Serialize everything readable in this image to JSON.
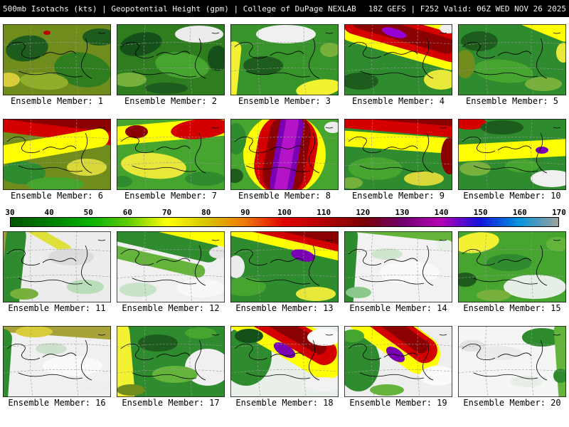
{
  "header": {
    "left": "500mb Isotachs (kts) | Geopotential Height (gpm) | College of DuPage NEXLAB",
    "right": "18Z GEFS | F252 Valid: 06Z WED NOV 26 2025"
  },
  "colorbar": {
    "unit": "kts",
    "ticks": [
      "30",
      "40",
      "50",
      "60",
      "70",
      "80",
      "90",
      "100",
      "110",
      "120",
      "130",
      "140",
      "150",
      "160",
      "170"
    ],
    "colors": [
      "#005500",
      "#007e00",
      "#00b000",
      "#5ecb00",
      "#ffff00",
      "#d8c400",
      "#f07800",
      "#e00000",
      "#b40000",
      "#7c0000",
      "#70006e",
      "#b400b4",
      "#1414dc",
      "#0096dc",
      "#a0a0a0"
    ]
  },
  "map_overlay": {
    "graticule": [
      "M0,30 Q76,22 152,28",
      "M0,66 Q76,58 152,64",
      "M40,0 Q36,50 42,100",
      "M104,0 Q101,50 106,100"
    ],
    "coast": [
      "M6,32 q10,-9 20,-6 q9,3 3,10 q-7,8 5,11 q10,2 18,-2",
      "M56,44 q9,-7 18,-3 q8,3 15,-1 q9,-5 14,2",
      "M116,20 q6,12 -1,24 q-8,13 -2,22 q5,8 12,10",
      "M22,66 q16,7 34,4 q17,-4 30,1 q13,5 26,2",
      "M134,12 q5,2 10,0"
    ]
  },
  "panels": [
    {
      "num": 1,
      "label": "Ensemble Member: 1",
      "base": "#6f8c1c",
      "shapes": [
        [
          "e",
          34,
          34,
          30,
          18,
          -8,
          "#1d5c1d"
        ],
        [
          "e",
          112,
          64,
          40,
          24,
          10,
          "#2e7d1f"
        ],
        [
          "e",
          136,
          18,
          24,
          12,
          0,
          "#1d5c1d"
        ],
        [
          "e",
          58,
          80,
          34,
          12,
          4,
          "#8fae2a"
        ],
        [
          "e",
          62,
          12,
          5,
          3,
          0,
          "#c00000"
        ],
        [
          "e",
          8,
          78,
          16,
          10,
          0,
          "#d8cc3a"
        ]
      ]
    },
    {
      "num": 2,
      "label": "Ensemble Member: 2",
      "base": "#2e7d1f",
      "shapes": [
        [
          "e",
          116,
          14,
          34,
          12,
          0,
          "#ececec"
        ],
        [
          "e",
          34,
          28,
          30,
          16,
          -12,
          "#15501a"
        ],
        [
          "e",
          92,
          58,
          38,
          18,
          8,
          "#45a52e"
        ],
        [
          "e",
          18,
          78,
          24,
          10,
          0,
          "#77b13c"
        ],
        [
          "e",
          142,
          48,
          14,
          18,
          0,
          "#15501a"
        ],
        [
          "e",
          70,
          90,
          30,
          8,
          0,
          "#1d5c1d"
        ]
      ]
    },
    {
      "num": 3,
      "label": "Ensemble Member: 3",
      "base": "#36942a",
      "shapes": [
        [
          "b",
          -8,
          24,
          20,
          84,
          6,
          "#f2f232"
        ],
        [
          "e",
          78,
          14,
          42,
          13,
          0,
          "#f0f0f0"
        ],
        [
          "e",
          124,
          90,
          32,
          12,
          -8,
          "#f2f232"
        ],
        [
          "e",
          46,
          58,
          28,
          13,
          0,
          "#1d5c1d"
        ],
        [
          "e",
          140,
          36,
          14,
          10,
          0,
          "#77b13c"
        ]
      ]
    },
    {
      "num": 4,
      "label": "Ensemble Member: 4",
      "base": "#2e8b2e",
      "shapes": [
        [
          "b",
          -16,
          -13,
          200,
          58,
          16,
          "#ffff00"
        ],
        [
          "b",
          -6,
          -6,
          180,
          40,
          16,
          "#d40000"
        ],
        [
          "b",
          8,
          2,
          150,
          22,
          16,
          "#8b0000"
        ],
        [
          "e",
          70,
          12,
          18,
          6,
          16,
          "#9400d3"
        ],
        [
          "e",
          136,
          78,
          24,
          14,
          0,
          "#e8e83a"
        ],
        [
          "e",
          146,
          6,
          12,
          7,
          0,
          "#f0f0f0"
        ],
        [
          "e",
          22,
          80,
          26,
          12,
          0,
          "#1d5c1d"
        ]
      ]
    },
    {
      "num": 5,
      "label": "Ensemble Member: 5",
      "base": "#2e8b2e",
      "shapes": [
        [
          "b",
          30,
          -26,
          140,
          30,
          22,
          "#ffff00"
        ],
        [
          "e",
          30,
          24,
          26,
          14,
          0,
          "#1d5c1d"
        ],
        [
          "e",
          64,
          66,
          42,
          16,
          6,
          "#45a52e"
        ],
        [
          "e",
          10,
          56,
          14,
          20,
          0,
          "#6f8c1c"
        ],
        [
          "e",
          120,
          84,
          26,
          10,
          0,
          "#77b13c"
        ],
        [
          "e",
          148,
          40,
          10,
          14,
          0,
          "#e8e83a"
        ]
      ]
    },
    {
      "num": 6,
      "label": "Ensemble Member: 6",
      "base": "#6f8c1c",
      "shapes": [
        [
          "b",
          -20,
          -18,
          200,
          46,
          7,
          "#d40000"
        ],
        [
          "b",
          -16,
          -14,
          190,
          24,
          7,
          "#8b0000"
        ],
        [
          "b",
          -20,
          26,
          170,
          26,
          -10,
          "#ffff00"
        ],
        [
          "e",
          28,
          76,
          32,
          16,
          0,
          "#2e8b2e"
        ],
        [
          "e",
          118,
          68,
          28,
          12,
          0,
          "#d8d83a"
        ],
        [
          "e",
          74,
          92,
          40,
          10,
          0,
          "#45a52e"
        ]
      ]
    },
    {
      "num": 7,
      "label": "Ensemble Member: 7",
      "base": "#45a52e",
      "shapes": [
        [
          "b",
          -16,
          4,
          190,
          26,
          -5,
          "#ffff00"
        ],
        [
          "e",
          118,
          14,
          42,
          14,
          -6,
          "#d40000"
        ],
        [
          "e",
          28,
          18,
          16,
          9,
          0,
          "#8b0000"
        ],
        [
          "e",
          52,
          66,
          46,
          18,
          5,
          "#e8e83a"
        ],
        [
          "e",
          124,
          84,
          28,
          10,
          0,
          "#2e8b2e"
        ],
        [
          "e",
          8,
          88,
          14,
          8,
          0,
          "#2e8b2e"
        ]
      ]
    },
    {
      "num": 8,
      "label": "Ensemble Member: 8",
      "base": "#45a52e",
      "shapes": [
        [
          "b",
          18,
          -8,
          116,
          116,
          10,
          "#ffff00"
        ],
        [
          "b",
          36,
          -8,
          84,
          116,
          10,
          "#d40000"
        ],
        [
          "b",
          50,
          -8,
          58,
          116,
          10,
          "#8b0000"
        ],
        [
          "b",
          62,
          -8,
          34,
          116,
          10,
          "#7a00b4"
        ],
        [
          "b",
          70,
          -6,
          18,
          112,
          10,
          "#b414c8"
        ],
        [
          "e",
          8,
          28,
          14,
          22,
          0,
          "#2e8b2e"
        ],
        [
          "e",
          144,
          12,
          12,
          8,
          0,
          "#ececec"
        ],
        [
          "e",
          6,
          80,
          12,
          10,
          0,
          "#1d5c1d"
        ]
      ]
    },
    {
      "num": 9,
      "label": "Ensemble Member: 9",
      "base": "#2e8b2e",
      "shapes": [
        [
          "b",
          -16,
          -14,
          200,
          34,
          5,
          "#d40000"
        ],
        [
          "b",
          -12,
          -16,
          180,
          20,
          5,
          "#8b0000"
        ],
        [
          "b",
          -16,
          22,
          190,
          22,
          4,
          "#ffff00"
        ],
        [
          "e",
          148,
          52,
          12,
          26,
          0,
          "#8b0000"
        ],
        [
          "e",
          44,
          70,
          38,
          16,
          0,
          "#45a52e"
        ],
        [
          "e",
          112,
          84,
          28,
          10,
          0,
          "#d8d83a"
        ],
        [
          "e",
          10,
          90,
          16,
          8,
          0,
          "#77b13c"
        ]
      ]
    },
    {
      "num": 10,
      "label": "Ensemble Member: 10",
      "base": "#2e8b2e",
      "shapes": [
        [
          "e",
          16,
          6,
          24,
          9,
          0,
          "#d40000"
        ],
        [
          "b",
          -14,
          32,
          190,
          24,
          -3,
          "#ffff00"
        ],
        [
          "e",
          62,
          12,
          30,
          10,
          0,
          "#1d5c1d"
        ],
        [
          "e",
          132,
          84,
          30,
          12,
          0,
          "#f0f0f0"
        ],
        [
          "e",
          24,
          70,
          22,
          10,
          0,
          "#77b13c"
        ],
        [
          "e",
          90,
          66,
          24,
          9,
          0,
          "#45a52e"
        ],
        [
          "e",
          118,
          44,
          9,
          5,
          0,
          "#7a00b4"
        ]
      ]
    },
    {
      "num": 11,
      "label": "Ensemble Member: 11",
      "base": "#ececec",
      "shapes": [
        [
          "b",
          -18,
          -8,
          26,
          120,
          4,
          "#a89838"
        ],
        [
          "b",
          0,
          -8,
          28,
          120,
          6,
          "#2e8b2e"
        ],
        [
          "b",
          22,
          2,
          78,
          13,
          30,
          "#e0e03a"
        ],
        [
          "e",
          96,
          36,
          32,
          12,
          0,
          "#dcdcdc"
        ],
        [
          "e",
          116,
          78,
          26,
          10,
          0,
          "#b9dcb9"
        ],
        [
          "e",
          30,
          88,
          20,
          8,
          0,
          "#77b13c"
        ]
      ]
    },
    {
      "num": 12,
      "label": "Ensemble Member: 12",
      "base": "#f0f0f0",
      "shapes": [
        [
          "b",
          -24,
          -2,
          170,
          30,
          13,
          "#2e8b2e"
        ],
        [
          "b",
          -16,
          -18,
          180,
          22,
          13,
          "#ffff00"
        ],
        [
          "b",
          -24,
          32,
          150,
          18,
          13,
          "#64b43c"
        ],
        [
          "e",
          118,
          80,
          34,
          13,
          0,
          "#f8f8f8"
        ],
        [
          "e",
          30,
          82,
          26,
          10,
          0,
          "#c8e4c8"
        ],
        [
          "e",
          142,
          30,
          12,
          8,
          0,
          "#e4e4e4"
        ]
      ]
    },
    {
      "num": 13,
      "label": "Ensemble Member: 13",
      "base": "#2e8b2e",
      "shapes": [
        [
          "b",
          -16,
          -20,
          210,
          46,
          13,
          "#ffff00"
        ],
        [
          "b",
          -4,
          -18,
          190,
          32,
          13,
          "#d40000"
        ],
        [
          "b",
          28,
          -12,
          140,
          18,
          13,
          "#8b0000"
        ],
        [
          "e",
          102,
          34,
          17,
          8,
          13,
          "#7a00b4"
        ],
        [
          "e",
          20,
          78,
          30,
          13,
          0,
          "#45a52e"
        ],
        [
          "e",
          120,
          88,
          28,
          10,
          0,
          "#e8e83a"
        ],
        [
          "e",
          8,
          50,
          12,
          16,
          0,
          "#ececec"
        ]
      ]
    },
    {
      "num": 14,
      "label": "Ensemble Member: 14",
      "base": "#f2f2f2",
      "shapes": [
        [
          "b",
          -14,
          -8,
          30,
          120,
          4,
          "#2e8b2e"
        ],
        [
          "b",
          -10,
          -16,
          180,
          24,
          6,
          "#64b43c"
        ],
        [
          "e",
          92,
          58,
          42,
          16,
          0,
          "#fafafa"
        ],
        [
          "e",
          60,
          32,
          22,
          8,
          0,
          "#cde6cd"
        ],
        [
          "e",
          20,
          86,
          18,
          8,
          0,
          "#8cc88c"
        ],
        [
          "e",
          142,
          20,
          12,
          8,
          0,
          "#e8f0e8"
        ]
      ]
    },
    {
      "num": 15,
      "label": "Ensemble Member: 15",
      "base": "#45a52e",
      "shapes": [
        [
          "e",
          26,
          16,
          32,
          14,
          -8,
          "#f2f232"
        ],
        [
          "e",
          108,
          78,
          44,
          17,
          0,
          "#e6efe6"
        ],
        [
          "e",
          72,
          44,
          32,
          12,
          0,
          "#2e8b2e"
        ],
        [
          "e",
          140,
          18,
          16,
          10,
          0,
          "#64b43c"
        ],
        [
          "e",
          10,
          68,
          16,
          10,
          0,
          "#1d5c1d"
        ],
        [
          "e",
          50,
          90,
          24,
          8,
          0,
          "#77b13c"
        ]
      ]
    },
    {
      "num": 16,
      "label": "Ensemble Member: 16",
      "base": "#f0f0f0",
      "shapes": [
        [
          "b",
          -12,
          -14,
          180,
          28,
          4,
          "#a8a23a"
        ],
        [
          "b",
          -16,
          4,
          26,
          110,
          4,
          "#2e8b2e"
        ],
        [
          "e",
          44,
          8,
          26,
          8,
          0,
          "#d8cc3a"
        ],
        [
          "e",
          98,
          56,
          42,
          14,
          0,
          "#fafafa"
        ],
        [
          "e",
          68,
          32,
          22,
          8,
          0,
          "#cde0cd"
        ],
        [
          "e",
          130,
          84,
          22,
          8,
          0,
          "#eeeeee"
        ]
      ]
    },
    {
      "num": 17,
      "label": "Ensemble Member: 17",
      "base": "#2e8b2e",
      "shapes": [
        [
          "b",
          -18,
          -10,
          40,
          124,
          -5,
          "#f2f232"
        ],
        [
          "e",
          128,
          58,
          32,
          26,
          0,
          "#f0f0f0"
        ],
        [
          "e",
          58,
          24,
          28,
          12,
          0,
          "#1d5c1d"
        ],
        [
          "e",
          82,
          68,
          32,
          12,
          0,
          "#64b43c"
        ],
        [
          "e",
          118,
          10,
          22,
          8,
          0,
          "#45a52e"
        ],
        [
          "e",
          20,
          90,
          20,
          8,
          0,
          "#6f8c1c"
        ]
      ]
    },
    {
      "num": 18,
      "label": "Ensemble Member: 18",
      "base": "#e9f0e9",
      "shapes": [
        [
          "e",
          22,
          42,
          36,
          42,
          0,
          "#2e8b2e"
        ],
        [
          "b",
          -18,
          -16,
          190,
          58,
          30,
          "#ffff00"
        ],
        [
          "b",
          -2,
          -12,
          160,
          36,
          30,
          "#d40000"
        ],
        [
          "b",
          18,
          -6,
          124,
          20,
          30,
          "#8b0000"
        ],
        [
          "e",
          76,
          34,
          17,
          8,
          30,
          "#7a00b4"
        ],
        [
          "e",
          132,
          16,
          24,
          12,
          0,
          "#fafafa"
        ],
        [
          "e",
          26,
          14,
          20,
          10,
          0,
          "#15501a"
        ],
        [
          "e",
          130,
          82,
          26,
          10,
          0,
          "#f2f2f2"
        ]
      ]
    },
    {
      "num": 19,
      "label": "Ensemble Member: 19",
      "base": "#eeeeee",
      "shapes": [
        [
          "e",
          20,
          52,
          30,
          40,
          0,
          "#2e8b2e"
        ],
        [
          "b",
          -6,
          -16,
          150,
          56,
          36,
          "#ffff00"
        ],
        [
          "b",
          8,
          -12,
          132,
          36,
          36,
          "#d40000"
        ],
        [
          "b",
          22,
          -6,
          104,
          20,
          36,
          "#8b0000"
        ],
        [
          "e",
          72,
          40,
          15,
          8,
          36,
          "#7a00b4"
        ],
        [
          "e",
          132,
          70,
          26,
          14,
          0,
          "#fafafa"
        ],
        [
          "e",
          12,
          14,
          16,
          9,
          0,
          "#45a52e"
        ],
        [
          "e",
          60,
          90,
          24,
          8,
          0,
          "#64b43c"
        ]
      ]
    },
    {
      "num": 20,
      "label": "Ensemble Member: 20",
      "base": "#f5f5f5",
      "shapes": [
        [
          "e",
          118,
          16,
          28,
          13,
          0,
          "#2e8b2e"
        ],
        [
          "b",
          138,
          -4,
          18,
          110,
          -4,
          "#64b43c"
        ],
        [
          "e",
          58,
          38,
          32,
          10,
          0,
          "#ebebeb"
        ],
        [
          "e",
          20,
          28,
          18,
          8,
          0,
          "#e2e2e2"
        ],
        [
          "e",
          96,
          78,
          22,
          8,
          0,
          "#e6eee6"
        ],
        [
          "e",
          144,
          70,
          10,
          10,
          0,
          "#2e8b2e"
        ]
      ]
    }
  ]
}
